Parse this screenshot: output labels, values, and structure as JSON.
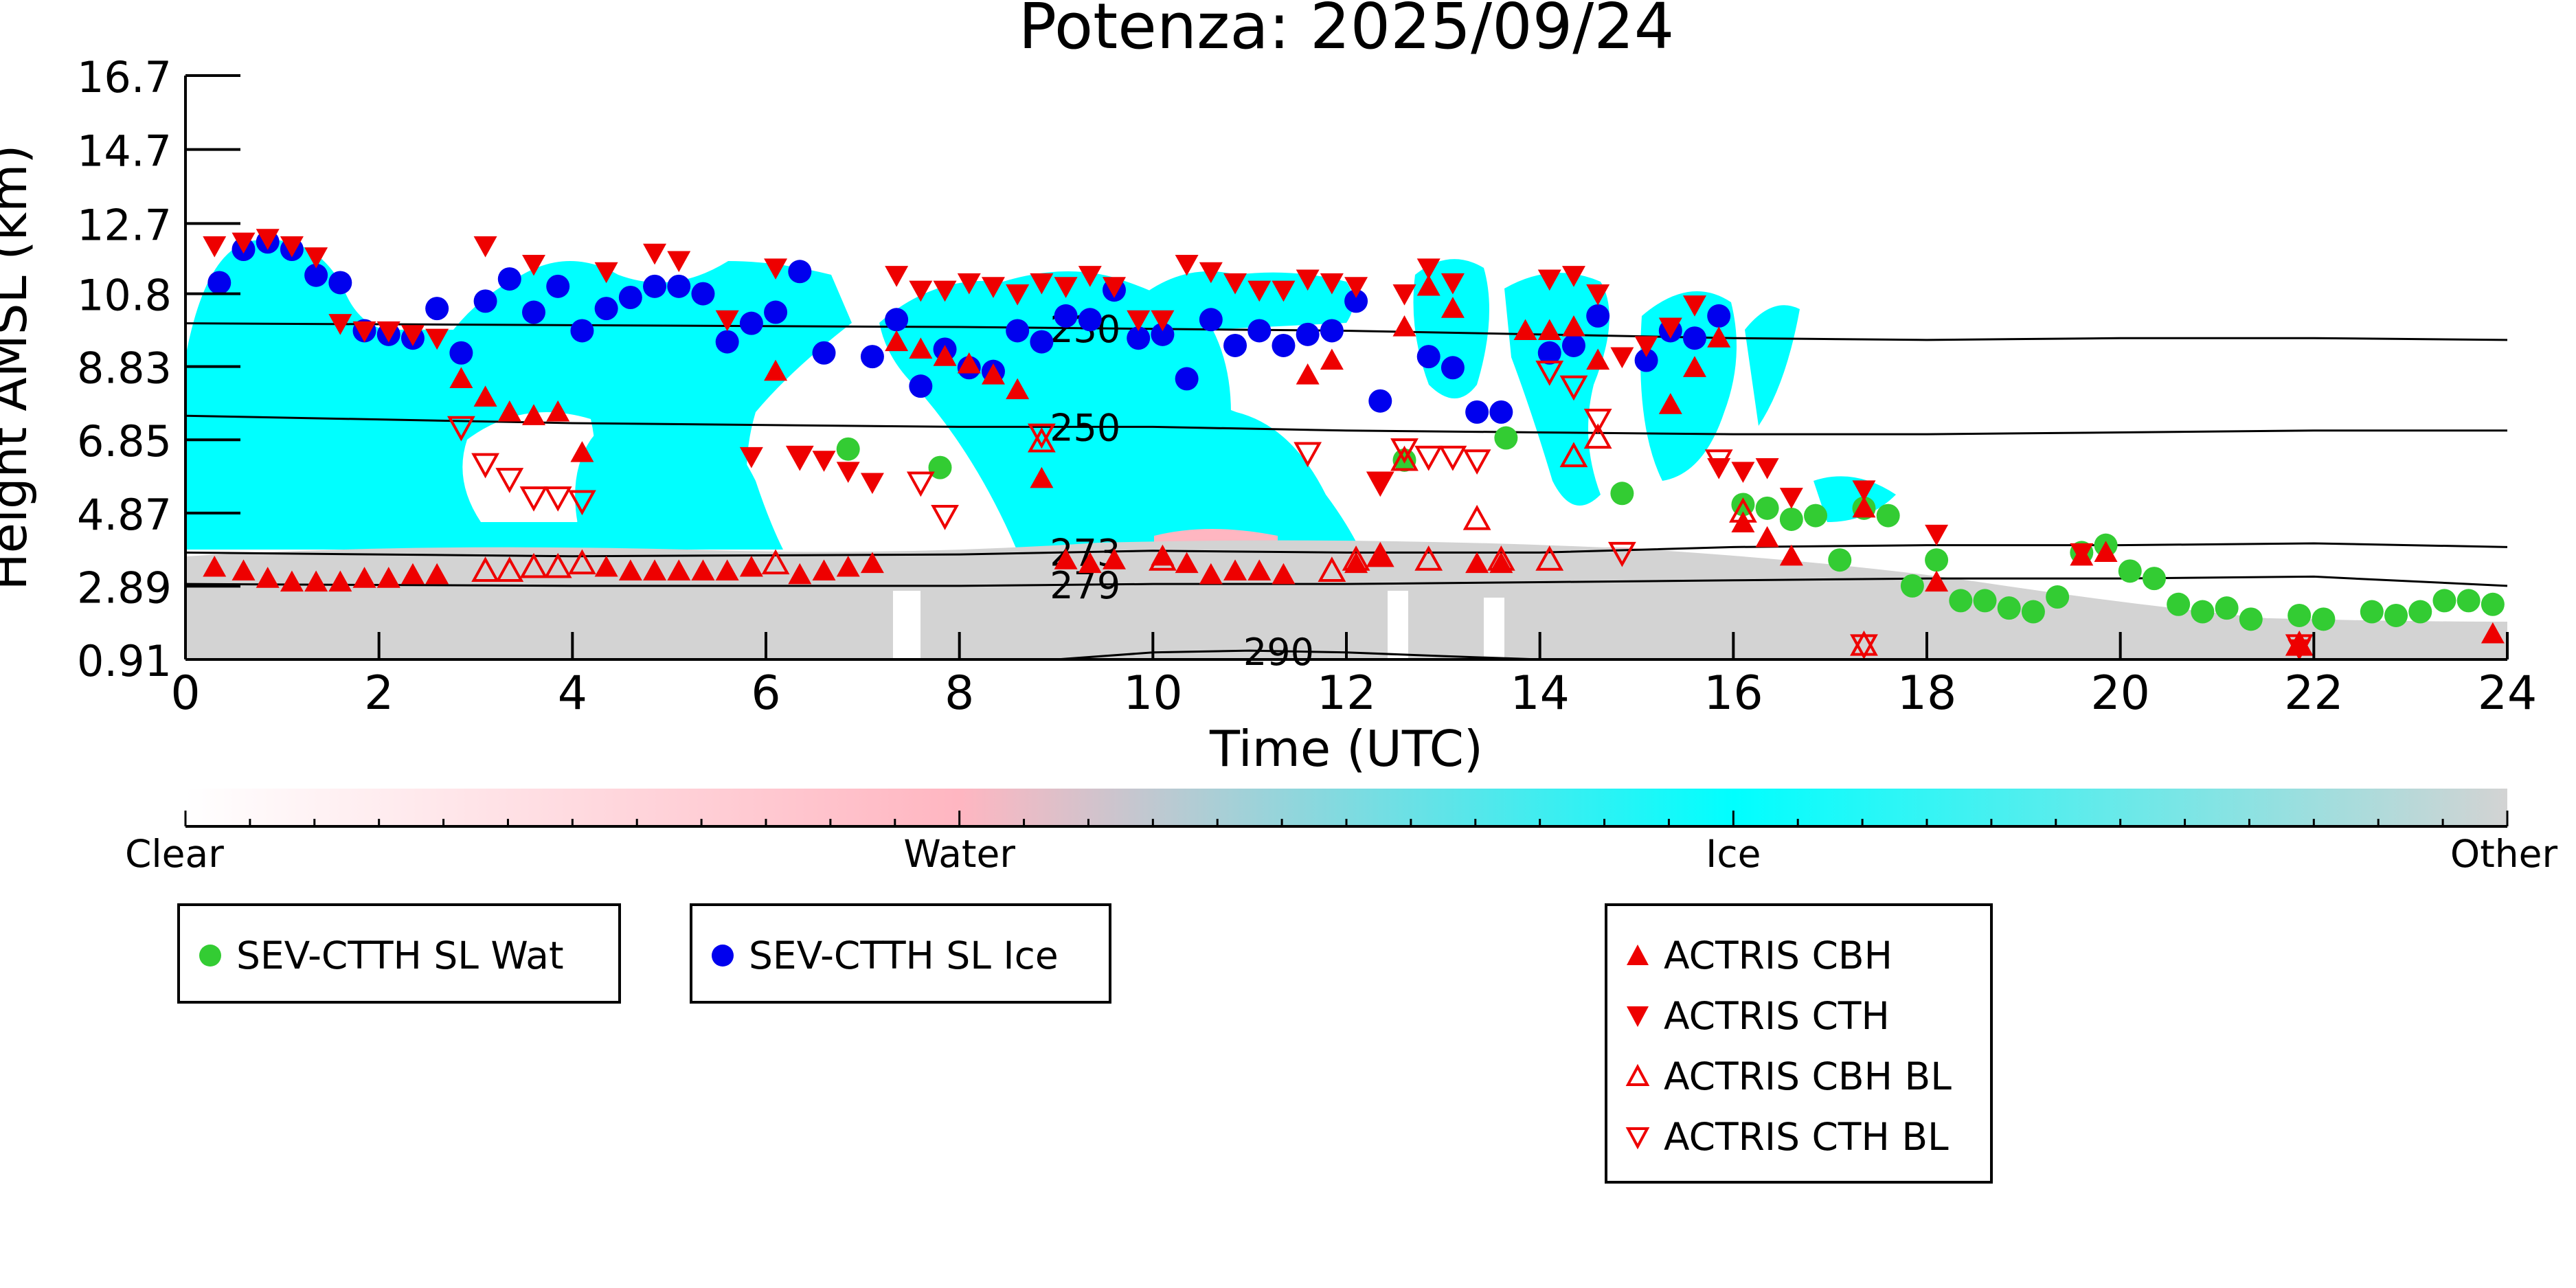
{
  "chart_data": {
    "type": "scatter",
    "title": "Potenza: 2025/09/24",
    "xlabel": "Time (UTC)",
    "ylabel": "Height AMSL (km)",
    "xlim": [
      0,
      24
    ],
    "ylim": [
      0.91,
      16.7
    ],
    "x_ticks": [
      "0",
      "2",
      "4",
      "6",
      "8",
      "10",
      "12",
      "14",
      "16",
      "18",
      "20",
      "22",
      "24"
    ],
    "y_ticks": [
      "0.91",
      "2.89",
      "4.87",
      "6.85",
      "8.83",
      "10.8",
      "12.7",
      "14.7",
      "16.7"
    ],
    "colorbar": {
      "labels": [
        "Clear",
        "Water",
        "Ice",
        "Other"
      ],
      "colors": [
        "#ffffff",
        "#ffb6c1",
        "#00ffff",
        "#d3d3d3"
      ]
    },
    "contours": [
      {
        "label": "230",
        "x": [
          0,
          4,
          8,
          10,
          12,
          14,
          16,
          18,
          20,
          22,
          24
        ],
        "y": [
          10.0,
          9.95,
          9.9,
          9.85,
          9.8,
          9.7,
          9.6,
          9.55,
          9.6,
          9.6,
          9.55
        ]
      },
      {
        "label": "250",
        "x": [
          0,
          4,
          8,
          10,
          12,
          14,
          16,
          18,
          20,
          22,
          24
        ],
        "y": [
          7.5,
          7.3,
          7.2,
          7.2,
          7.1,
          7.05,
          7.0,
          7.0,
          7.05,
          7.1,
          7.1
        ]
      },
      {
        "label": "273",
        "x": [
          0,
          4,
          8,
          10,
          12,
          14,
          16,
          18,
          20,
          22,
          24
        ],
        "y": [
          3.8,
          3.7,
          3.75,
          3.85,
          3.8,
          3.8,
          3.95,
          4.0,
          4.0,
          4.05,
          3.95
        ]
      },
      {
        "label": "279",
        "x": [
          0,
          4,
          8,
          10,
          12,
          14,
          16,
          18,
          20,
          22,
          24
        ],
        "y": [
          2.95,
          2.9,
          2.9,
          2.95,
          2.95,
          3.0,
          3.05,
          3.1,
          3.1,
          3.15,
          2.9
        ]
      },
      {
        "label": "290",
        "x": [
          9,
          10,
          11,
          12,
          13,
          14
        ],
        "y": [
          0.91,
          1.1,
          1.15,
          1.1,
          1.0,
          0.91
        ]
      }
    ],
    "series": [
      {
        "name": "SEV-CTTH SL Wat",
        "marker": "circle",
        "color": "#33cc33",
        "x": [
          6.85,
          7.8,
          12.6,
          13.65,
          14.85,
          16.1,
          16.35,
          16.6,
          16.85,
          17.1,
          17.35,
          17.6,
          17.85,
          18.1,
          18.35,
          18.6,
          18.85,
          19.1,
          19.35,
          19.6,
          19.85,
          20.1,
          20.35,
          20.6,
          20.85,
          21.1,
          21.35,
          21.85,
          22.1,
          22.6,
          22.85,
          23.1,
          23.35,
          23.6,
          23.85
        ],
        "y": [
          6.6,
          6.1,
          6.3,
          6.9,
          5.4,
          5.1,
          5.0,
          4.7,
          4.8,
          3.6,
          5.0,
          4.8,
          2.9,
          3.6,
          2.5,
          2.5,
          2.3,
          2.2,
          2.6,
          3.8,
          4.0,
          3.3,
          3.1,
          2.4,
          2.2,
          2.3,
          2.0,
          2.1,
          2.0,
          2.2,
          2.1,
          2.2,
          2.5,
          2.5,
          2.4
        ]
      },
      {
        "name": "SEV-CTTH SL Ice",
        "marker": "circle",
        "color": "#0000ee",
        "x": [
          0.35,
          0.6,
          0.85,
          1.1,
          1.35,
          1.6,
          1.85,
          2.1,
          2.35,
          2.6,
          2.85,
          3.1,
          3.35,
          3.6,
          3.85,
          4.1,
          4.35,
          4.6,
          4.85,
          5.1,
          5.35,
          5.6,
          5.85,
          6.1,
          6.35,
          6.6,
          7.1,
          7.35,
          7.6,
          7.85,
          8.1,
          8.35,
          8.6,
          8.85,
          9.1,
          9.35,
          9.6,
          9.85,
          10.1,
          10.35,
          10.6,
          10.85,
          11.1,
          11.35,
          11.6,
          11.85,
          12.1,
          12.35,
          12.85,
          13.1,
          13.35,
          13.6,
          14.1,
          14.35,
          14.6,
          15.1,
          15.35,
          15.6,
          15.85
        ],
        "y": [
          11.1,
          12.0,
          12.2,
          12.0,
          11.3,
          11.1,
          9.8,
          9.7,
          9.6,
          10.4,
          9.2,
          10.6,
          11.2,
          10.3,
          11.0,
          9.8,
          10.4,
          10.7,
          11.0,
          11.0,
          10.8,
          9.5,
          10.0,
          10.3,
          11.4,
          9.2,
          9.1,
          10.1,
          8.3,
          9.3,
          8.8,
          8.7,
          9.8,
          9.5,
          10.2,
          10.1,
          10.9,
          9.6,
          9.7,
          8.5,
          10.1,
          9.4,
          9.8,
          9.4,
          9.7,
          9.8,
          10.6,
          7.9,
          9.1,
          8.8,
          7.6,
          7.6,
          9.2,
          9.4,
          10.2,
          9.0,
          9.8,
          9.6,
          10.2
        ]
      },
      {
        "name": "ACTRIS CBH",
        "marker": "triangle-up",
        "color": "#ee0000",
        "filled": true,
        "x": [
          0.3,
          0.6,
          0.85,
          1.1,
          1.35,
          1.6,
          1.85,
          2.1,
          2.35,
          2.6,
          2.85,
          3.1,
          3.35,
          3.6,
          3.85,
          4.1,
          4.35,
          4.6,
          4.85,
          5.1,
          5.35,
          5.6,
          5.85,
          6.1,
          6.35,
          6.6,
          6.85,
          7.1,
          7.35,
          7.6,
          7.85,
          8.1,
          8.35,
          8.6,
          8.85,
          9.1,
          9.35,
          9.6,
          10.1,
          10.35,
          10.6,
          10.85,
          11.1,
          11.35,
          11.6,
          11.85,
          12.1,
          12.35,
          12.6,
          12.85,
          13.1,
          13.35,
          13.6,
          13.85,
          14.1,
          14.35,
          14.6,
          15.35,
          15.6,
          15.85,
          16.1,
          16.35,
          16.6,
          17.35,
          18.1,
          19.6,
          19.85,
          21.85,
          23.85
        ],
        "y": [
          3.4,
          3.3,
          3.1,
          3.0,
          3.0,
          3.0,
          3.1,
          3.1,
          3.2,
          3.2,
          8.5,
          8.0,
          7.6,
          7.5,
          7.6,
          6.5,
          3.4,
          3.3,
          3.3,
          3.3,
          3.3,
          3.3,
          3.4,
          8.7,
          3.2,
          3.3,
          3.4,
          3.5,
          9.5,
          9.3,
          9.1,
          8.9,
          8.6,
          8.2,
          5.8,
          3.6,
          3.5,
          3.6,
          3.7,
          3.5,
          3.2,
          3.3,
          3.3,
          3.2,
          8.6,
          9.0,
          3.5,
          3.7,
          9.9,
          11.0,
          10.4,
          3.5,
          3.5,
          9.8,
          9.8,
          9.9,
          9.0,
          7.8,
          8.8,
          9.6,
          4.6,
          4.2,
          3.7,
          5.0,
          3.0,
          3.7,
          3.8,
          1.3,
          1.6
        ]
      },
      {
        "name": "ACTRIS CTH",
        "marker": "triangle-down",
        "color": "#ee0000",
        "filled": true,
        "x": [
          0.3,
          0.6,
          0.85,
          1.1,
          1.35,
          1.6,
          1.85,
          2.1,
          2.35,
          2.6,
          3.1,
          3.6,
          4.35,
          4.85,
          5.1,
          5.6,
          5.85,
          6.1,
          6.35,
          6.6,
          6.85,
          7.1,
          7.35,
          7.6,
          7.85,
          8.1,
          8.35,
          8.6,
          8.85,
          9.1,
          9.35,
          9.6,
          9.85,
          10.1,
          10.35,
          10.6,
          10.85,
          11.1,
          11.35,
          11.6,
          11.85,
          12.1,
          12.35,
          12.6,
          12.85,
          13.1,
          14.1,
          14.35,
          14.6,
          14.85,
          15.1,
          15.35,
          15.6,
          15.85,
          16.1,
          16.35,
          16.6,
          17.35,
          18.1,
          19.6,
          21.85
        ],
        "y": [
          12.1,
          12.2,
          12.3,
          12.1,
          11.8,
          10.0,
          9.8,
          9.8,
          9.7,
          9.6,
          12.1,
          11.6,
          11.4,
          11.9,
          11.7,
          10.1,
          6.4,
          11.5,
          6.4,
          6.3,
          6.0,
          5.7,
          11.3,
          10.9,
          10.9,
          11.1,
          11.0,
          10.8,
          11.1,
          11.0,
          11.3,
          11.0,
          10.1,
          10.1,
          11.6,
          11.4,
          11.1,
          10.9,
          10.9,
          11.2,
          11.1,
          11.0,
          5.7,
          10.8,
          11.5,
          11.1,
          11.2,
          11.3,
          10.8,
          9.1,
          9.4,
          9.9,
          10.5,
          6.1,
          6.0,
          6.1,
          5.3,
          5.5,
          4.3,
          3.8,
          1.2
        ]
      },
      {
        "name": "ACTRIS CBH BL",
        "marker": "triangle-up",
        "color": "#ee0000",
        "filled": false,
        "x": [
          3.1,
          3.35,
          3.6,
          3.85,
          4.1,
          6.1,
          8.85,
          10.1,
          11.85,
          12.1,
          12.35,
          12.6,
          12.85,
          13.35,
          13.6,
          14.1,
          14.35,
          14.6,
          16.1,
          17.35,
          21.85
        ],
        "y": [
          3.3,
          3.3,
          3.4,
          3.4,
          3.5,
          3.5,
          6.8,
          3.6,
          3.3,
          3.6,
          3.7,
          6.3,
          3.6,
          4.7,
          3.6,
          3.6,
          6.4,
          6.9,
          4.9,
          1.3,
          1.3
        ]
      },
      {
        "name": "ACTRIS CTH BL",
        "marker": "triangle-down",
        "color": "#ee0000",
        "filled": false,
        "x": [
          2.85,
          3.1,
          3.35,
          3.6,
          3.85,
          4.1,
          6.35,
          7.6,
          7.85,
          8.85,
          11.6,
          12.35,
          12.6,
          12.85,
          13.1,
          13.35,
          14.1,
          14.35,
          14.6,
          14.85,
          15.85,
          17.35,
          21.85
        ],
        "y": [
          7.2,
          6.2,
          5.8,
          5.3,
          5.3,
          5.2,
          6.4,
          5.7,
          4.8,
          7.0,
          6.5,
          5.7,
          6.6,
          6.4,
          6.4,
          6.3,
          8.7,
          8.3,
          7.4,
          3.8,
          6.3,
          1.3,
          1.3
        ]
      }
    ]
  }
}
